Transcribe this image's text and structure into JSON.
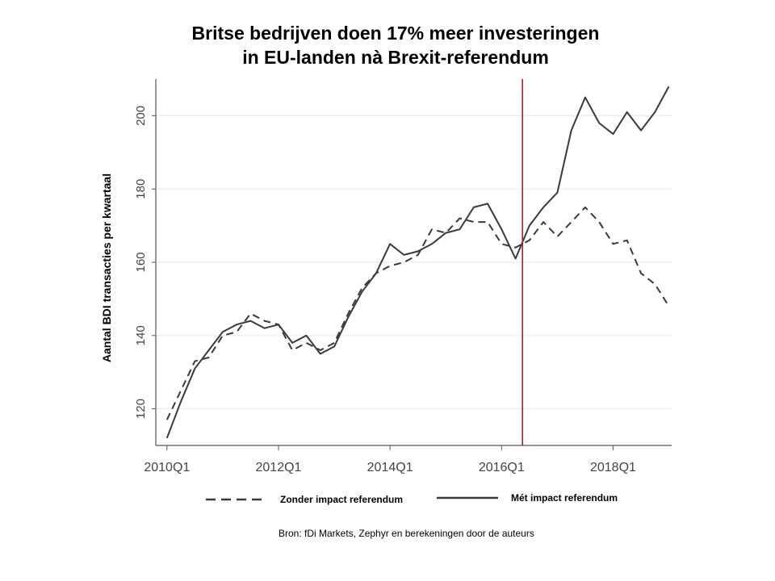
{
  "chart_data": {
    "type": "line",
    "title_lines": [
      "Britse bedrijven doen 17%  meer investeringen",
      "in EU-landen nà Brexit-referendum"
    ],
    "ylabel": "Aantal BDI transacties per kwartaal",
    "xlabel": "",
    "source": "Bron: fDi Markets, Zephyr en berekeningen door de auteurs",
    "x_tick_labels": [
      "2010Q1",
      "2012Q1",
      "2014Q1",
      "2016Q1",
      "2018Q1"
    ],
    "x_tick_quarters": [
      0,
      8,
      16,
      24,
      32
    ],
    "y_ticks": [
      120,
      140,
      160,
      180,
      200
    ],
    "ylim": [
      110,
      210
    ],
    "xlim": [
      -0.8,
      36.2
    ],
    "referendum_quarter": 25.5,
    "referendum_color": "#c8102e",
    "grid": "horizontal",
    "legend_position": "bottom",
    "quarters": [
      0,
      1,
      2,
      3,
      4,
      5,
      6,
      7,
      8,
      9,
      10,
      11,
      12,
      13,
      14,
      15,
      16,
      17,
      18,
      19,
      20,
      21,
      22,
      23,
      24,
      25,
      26,
      27,
      28,
      29,
      30,
      31,
      32,
      33,
      34,
      35,
      36
    ],
    "series": [
      {
        "name": "Zonder impact referendum",
        "style": "dashed",
        "color": "#3a3a3a",
        "values": [
          117,
          125,
          133,
          134,
          140,
          141,
          146,
          144,
          143,
          136,
          138,
          136,
          138,
          146,
          153,
          157,
          159,
          160,
          162,
          169,
          168,
          172,
          171,
          171,
          165,
          164,
          166,
          171,
          167,
          171,
          175,
          171,
          165,
          166,
          157,
          154,
          148
        ]
      },
      {
        "name": "Mét impact referendum",
        "style": "solid",
        "color": "#3a3a3a",
        "values": [
          112,
          122,
          131,
          136,
          141,
          143,
          144,
          142,
          143,
          138,
          140,
          135,
          137,
          145,
          152,
          157,
          165,
          162,
          163,
          165,
          168,
          169,
          175,
          176,
          169,
          161,
          170,
          175,
          179,
          196,
          205,
          198,
          195,
          201,
          196,
          201,
          208
        ]
      }
    ]
  }
}
